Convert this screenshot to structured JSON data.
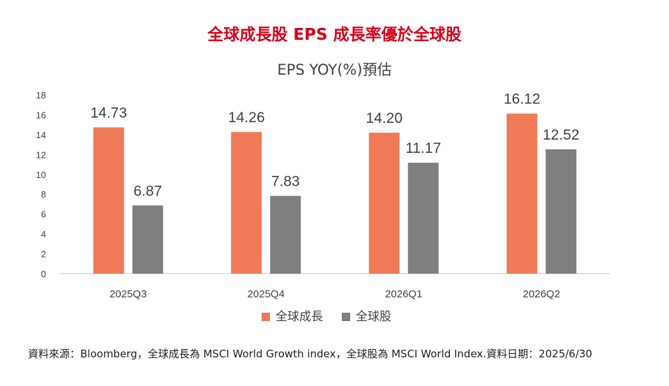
{
  "banner_title": "全球成長股 EPS 成長率優於全球股",
  "colors": {
    "growth": "#f07a57",
    "global": "#7f7f7f",
    "axis": "#d9d9d9",
    "title": "#d6001c"
  },
  "chart_data": {
    "type": "bar",
    "title": "EPS YOY(%)預估",
    "xlabel": "",
    "ylabel": "",
    "ylim": [
      0,
      18
    ],
    "yticks": [
      "0",
      "2",
      "4",
      "6",
      "8",
      "10",
      "12",
      "14",
      "16",
      "18"
    ],
    "categories": [
      "2025Q3",
      "2025Q4",
      "2026Q1",
      "2026Q2"
    ],
    "series": [
      {
        "name": "全球成長",
        "values": [
          14.73,
          14.26,
          14.2,
          16.12
        ],
        "labels": [
          "14.73",
          "14.26",
          "14.20",
          "16.12"
        ]
      },
      {
        "name": "全球股",
        "values": [
          6.87,
          7.83,
          11.17,
          12.52
        ],
        "labels": [
          "6.87",
          "7.83",
          "11.17",
          "12.52"
        ]
      }
    ],
    "grid": false,
    "legend": "bottom"
  },
  "footer": {
    "source": "資料來源：Bloomberg，全球成長為 MSCI World Growth index，全球股為 MSCI World Index.資料日期：2025/6/30"
  }
}
